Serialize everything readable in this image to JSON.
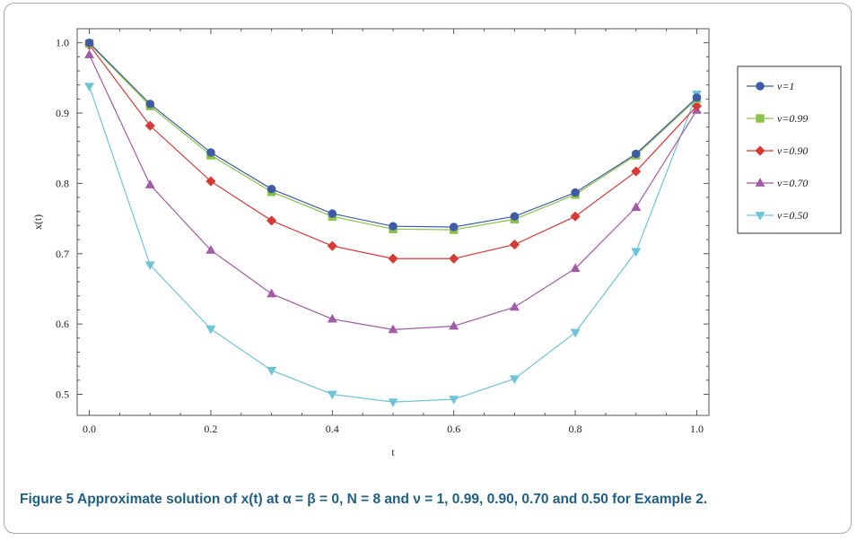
{
  "caption": {
    "text": "Figure 5  Approximate solution of x(t) at α = β = 0, N = 8 and ν = 1, 0.99, 0.90, 0.70 and 0.50 for Example 2."
  },
  "chart_data": {
    "type": "line",
    "title": "",
    "xlabel": "t",
    "ylabel": "x(t)",
    "xlim": [
      -0.02,
      1.02
    ],
    "ylim": [
      0.47,
      1.02
    ],
    "x_ticks": [
      0.0,
      0.2,
      0.4,
      0.6,
      0.8,
      1.0
    ],
    "x_tick_labels": [
      "0.0",
      "0.2",
      "0.4",
      "0.6",
      "0.8",
      "1.0"
    ],
    "y_ticks": [
      0.5,
      0.6,
      0.7,
      0.8,
      0.9,
      1.0
    ],
    "y_tick_labels": [
      "0.5",
      "0.6",
      "0.7",
      "0.8",
      "0.9",
      "1.0"
    ],
    "grid": false,
    "legend_position": "right",
    "x": [
      0.0,
      0.1,
      0.2,
      0.3,
      0.4,
      0.5,
      0.6,
      0.7,
      0.8,
      0.9,
      1.0
    ],
    "series": [
      {
        "name": "ν=1",
        "color": "#3f5aa6",
        "marker": "circle",
        "values": [
          1.0,
          0.913,
          0.844,
          0.792,
          0.757,
          0.739,
          0.738,
          0.753,
          0.787,
          0.842,
          0.922
        ]
      },
      {
        "name": "ν=0.99",
        "color": "#8dc34a",
        "marker": "square",
        "values": [
          0.999,
          0.91,
          0.84,
          0.788,
          0.753,
          0.735,
          0.734,
          0.749,
          0.784,
          0.84,
          0.92
        ]
      },
      {
        "name": "ν=0.90",
        "color": "#d63a36",
        "marker": "diamond",
        "values": [
          0.997,
          0.882,
          0.803,
          0.747,
          0.711,
          0.693,
          0.693,
          0.713,
          0.753,
          0.817,
          0.91
        ]
      },
      {
        "name": "ν=0.70",
        "color": "#a35aa8",
        "marker": "triangle-up",
        "values": [
          0.983,
          0.798,
          0.705,
          0.643,
          0.607,
          0.592,
          0.597,
          0.624,
          0.679,
          0.766,
          0.904
        ]
      },
      {
        "name": "ν=0.50",
        "color": "#6fc4d9",
        "marker": "triangle-down",
        "values": [
          0.938,
          0.684,
          0.593,
          0.534,
          0.5,
          0.489,
          0.493,
          0.522,
          0.588,
          0.703,
          0.927
        ]
      }
    ]
  }
}
